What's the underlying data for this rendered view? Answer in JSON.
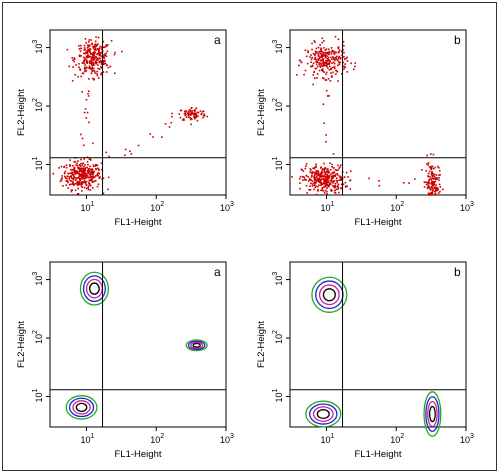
{
  "chart_data": [
    {
      "type": "scatter",
      "panel_label": "a",
      "xlabel": "FL1-Height",
      "ylabel": "FL2-Height",
      "xscale": "log",
      "yscale": "log",
      "xlim": [
        3,
        1000
      ],
      "ylim": [
        3,
        2000
      ],
      "xticks": [
        "10",
        "10",
        "10"
      ],
      "xtick_exponents": [
        "1",
        "2",
        "3"
      ],
      "yticks": [
        "10",
        "10",
        "10"
      ],
      "ytick_exponents": [
        "1",
        "2",
        "3"
      ],
      "gate": {
        "x": 17,
        "y": 13
      },
      "clusters": [
        {
          "x": 8.5,
          "y": 6.5,
          "spread_x": 0.14,
          "spread_y": 0.12,
          "n": 320
        },
        {
          "x": 12.5,
          "y": 650,
          "spread_x": 0.13,
          "spread_y": 0.15,
          "n": 280
        },
        {
          "x": 330,
          "y": 72,
          "spread_x": 0.1,
          "spread_y": 0.06,
          "n": 90
        }
      ],
      "grid": false
    },
    {
      "type": "scatter",
      "panel_label": "b",
      "xlabel": "FL1-Height",
      "ylabel": "FL2-Height",
      "xscale": "log",
      "yscale": "log",
      "xlim": [
        3,
        1000
      ],
      "ylim": [
        3,
        2000
      ],
      "xticks": [
        "10",
        "10",
        "10"
      ],
      "xtick_exponents": [
        "1",
        "2",
        "3"
      ],
      "yticks": [
        "10",
        "10",
        "10"
      ],
      "ytick_exponents": [
        "1",
        "2",
        "3"
      ],
      "gate": {
        "x": 17,
        "y": 13
      },
      "clusters": [
        {
          "x": 9,
          "y": 5.5,
          "spread_x": 0.15,
          "spread_y": 0.12,
          "n": 320
        },
        {
          "x": 10,
          "y": 600,
          "spread_x": 0.15,
          "spread_y": 0.14,
          "n": 260
        },
        {
          "x": 330,
          "y": 4.5,
          "spread_x": 0.05,
          "spread_y": 0.2,
          "n": 160
        }
      ],
      "grid": false
    },
    {
      "type": "contour",
      "panel_label": "a",
      "xlabel": "FL1-Height",
      "ylabel": "FL2-Height",
      "xscale": "log",
      "yscale": "log",
      "xlim": [
        3,
        1000
      ],
      "ylim": [
        3,
        2000
      ],
      "xticks": [
        "10",
        "10",
        "10"
      ],
      "xtick_exponents": [
        "1",
        "2",
        "3"
      ],
      "yticks": [
        "10",
        "10",
        "10"
      ],
      "ytick_exponents": [
        "1",
        "2",
        "3"
      ],
      "gate": {
        "x": 17,
        "y": 13
      },
      "contour_levels": [
        "#22aa22",
        "#2222cc",
        "#cc2299",
        "#000000"
      ],
      "clusters": [
        {
          "x": 8.5,
          "y": 6.5,
          "size_x": 0.22,
          "size_y": 0.2
        },
        {
          "x": 13,
          "y": 700,
          "size_x": 0.2,
          "size_y": 0.28
        },
        {
          "x": 380,
          "y": 75,
          "size_x": 0.15,
          "size_y": 0.09
        }
      ],
      "grid": false
    },
    {
      "type": "contour",
      "panel_label": "b",
      "xlabel": "FL1-Height",
      "ylabel": "FL2-Height",
      "xscale": "log",
      "yscale": "log",
      "xlim": [
        3,
        1000
      ],
      "ylim": [
        3,
        2000
      ],
      "xticks": [
        "10",
        "10",
        "10"
      ],
      "xtick_exponents": [
        "1",
        "2",
        "3"
      ],
      "yticks": [
        "10",
        "10",
        "10"
      ],
      "ytick_exponents": [
        "1",
        "2",
        "3"
      ],
      "gate": {
        "x": 17,
        "y": 13
      },
      "contour_levels": [
        "#22aa22",
        "#2222cc",
        "#cc2299",
        "#000000"
      ],
      "clusters": [
        {
          "x": 9,
          "y": 5,
          "size_x": 0.25,
          "size_y": 0.22
        },
        {
          "x": 11,
          "y": 550,
          "size_x": 0.25,
          "size_y": 0.3
        },
        {
          "x": 330,
          "y": 5,
          "size_x": 0.12,
          "size_y": 0.38
        }
      ],
      "grid": false
    }
  ],
  "colors": {
    "dots": "#cc0000",
    "axes": "#000000",
    "background": "#ffffff",
    "frame": "#333333"
  }
}
